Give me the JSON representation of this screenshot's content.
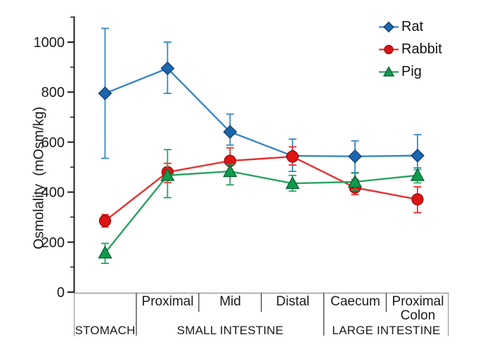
{
  "figure": {
    "background": "#ffffff",
    "text_color": "#1a1a1a",
    "axis_color": "#1c1c1c",
    "table_border_color": "#9b9b9b",
    "table_divider_color": "#4d4d4d"
  },
  "chart_data": {
    "type": "line",
    "title": "",
    "ylabel": "Osmolality  (mOsm/kg)",
    "ylim": [
      0,
      1100
    ],
    "yticks": [
      0,
      200,
      400,
      600,
      800,
      1000
    ],
    "minor_ytick_step": 100,
    "grid": false,
    "legend_position": "top-right",
    "categories": [
      "Stomach",
      "Proximal",
      "Mid",
      "Distal",
      "Caecum",
      "Proximal Colon"
    ],
    "x_axis_table": {
      "sub_labels": [
        "",
        "Proximal",
        "Mid",
        "Distal",
        "Caecum",
        "Proximal Colon"
      ],
      "groups": [
        {
          "label": "STOMACH",
          "span": [
            0,
            0
          ]
        },
        {
          "label": "SMALL INTESTINE",
          "span": [
            1,
            3
          ]
        },
        {
          "label": "LARGE INTESTINE",
          "span": [
            4,
            5
          ]
        }
      ]
    },
    "series": [
      {
        "name": "Rat",
        "marker": "diamond",
        "line": "#3886c6",
        "fill": "#1b66ad",
        "edge": "#0e3f74",
        "values": [
          795,
          895,
          641,
          545,
          543,
          546
        ],
        "err_low": [
          535,
          795,
          588,
          483,
          478,
          490
        ],
        "err_high": [
          1055,
          1000,
          712,
          612,
          605,
          630
        ]
      },
      {
        "name": "Rabbit",
        "marker": "circle",
        "line": "#e63030",
        "fill": "#df1414",
        "edge": "#930b0b",
        "values": [
          285,
          480,
          525,
          542,
          418,
          371
        ],
        "err_low": [
          260,
          438,
          483,
          508,
          390,
          318
        ],
        "err_high": [
          310,
          515,
          577,
          581,
          450,
          421
        ]
      },
      {
        "name": "Pig",
        "marker": "triangle",
        "line": "#2aa263",
        "fill": "#0f9b4c",
        "edge": "#07602f",
        "values": [
          157,
          467,
          483,
          435,
          441,
          467
        ],
        "err_low": [
          115,
          378,
          429,
          404,
          408,
          437
        ],
        "err_high": [
          195,
          570,
          510,
          467,
          476,
          497
        ]
      }
    ]
  }
}
